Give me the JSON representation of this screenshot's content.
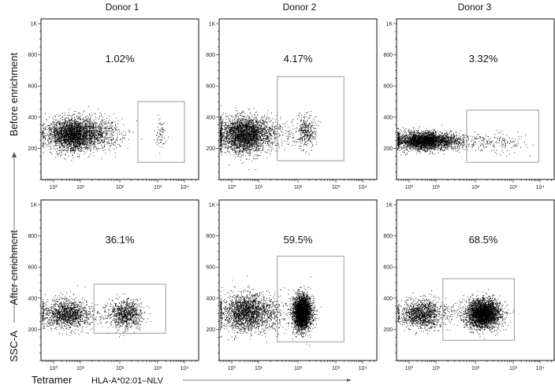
{
  "chart_data": {
    "type": "scatter",
    "layout": "2 rows x 3 columns of flow cytometry dot plots",
    "columns": [
      "Donor 1",
      "Donor 2",
      "Donor 3"
    ],
    "rows": [
      "Before enrichment",
      "After enrichment"
    ],
    "xlabel": "Tetramer",
    "xlabel_suffix": "HLA-A*02:01–NLV",
    "ylabel": "SSC-A",
    "xscale": "biexponential (log)",
    "x_ticks": [
      "10⁰",
      "10¹",
      "10²",
      "10³",
      "10⁴"
    ],
    "y_ticks": [
      "200",
      "400",
      "600",
      "800",
      "1K"
    ],
    "ylim": [
      0,
      1000
    ],
    "dot_color": "#000000",
    "gate_color": "#999999",
    "panels": [
      {
        "row": 0,
        "col": 0,
        "gate_label": "1.02%",
        "gate": {
          "x": [
            300,
            10000
          ],
          "y": [
            110,
            500
          ]
        },
        "populations": [
          {
            "log_x": 0.8,
            "log_x_sd": 0.5,
            "y": 290,
            "y_sd": 50,
            "n": 3500
          },
          {
            "log_x": 3.1,
            "log_x_sd": 0.1,
            "y": 290,
            "y_sd": 45,
            "n": 70
          }
        ]
      },
      {
        "row": 0,
        "col": 1,
        "gate_label": "4.17%",
        "gate": {
          "x": [
            30,
            2000
          ],
          "y": [
            120,
            660
          ]
        },
        "populations": [
          {
            "log_x": 0.5,
            "log_x_sd": 0.5,
            "y": 290,
            "y_sd": 55,
            "n": 3200
          },
          {
            "log_x": 2.2,
            "log_x_sd": 0.13,
            "y": 310,
            "y_sd": 50,
            "n": 350
          }
        ]
      },
      {
        "row": 0,
        "col": 2,
        "gate_label": "3.32%",
        "gate": {
          "x": [
            60,
            9000
          ],
          "y": [
            110,
            445
          ]
        },
        "populations": [
          {
            "log_x": 0.6,
            "log_x_sd": 0.55,
            "y": 250,
            "y_sd": 28,
            "n": 3200
          },
          {
            "log_x": 2.6,
            "log_x_sd": 0.4,
            "y": 240,
            "y_sd": 30,
            "n": 150
          }
        ]
      },
      {
        "row": 1,
        "col": 0,
        "gate_label": "36.1%",
        "gate": {
          "x": [
            22,
            2000
          ],
          "y": [
            175,
            490
          ]
        },
        "populations": [
          {
            "log_x": 0.5,
            "log_x_sd": 0.45,
            "y": 300,
            "y_sd": 45,
            "n": 1500
          },
          {
            "log_x": 2.15,
            "log_x_sd": 0.22,
            "y": 300,
            "y_sd": 45,
            "n": 900
          }
        ]
      },
      {
        "row": 1,
        "col": 1,
        "gate_label": "59.5%",
        "gate": {
          "x": [
            30,
            2000
          ],
          "y": [
            120,
            670
          ]
        },
        "populations": [
          {
            "log_x": 0.6,
            "log_x_sd": 0.5,
            "y": 310,
            "y_sd": 60,
            "n": 2300
          },
          {
            "log_x": 2.1,
            "log_x_sd": 0.12,
            "y": 310,
            "y_sd": 55,
            "n": 3400
          }
        ]
      },
      {
        "row": 1,
        "col": 2,
        "gate_label": "68.5%",
        "gate": {
          "x": [
            15,
            1100
          ],
          "y": [
            130,
            525
          ]
        },
        "populations": [
          {
            "log_x": 0.5,
            "log_x_sd": 0.45,
            "y": 300,
            "y_sd": 45,
            "n": 1400
          },
          {
            "log_x": 2.2,
            "log_x_sd": 0.22,
            "y": 300,
            "y_sd": 45,
            "n": 3400
          }
        ]
      }
    ]
  }
}
